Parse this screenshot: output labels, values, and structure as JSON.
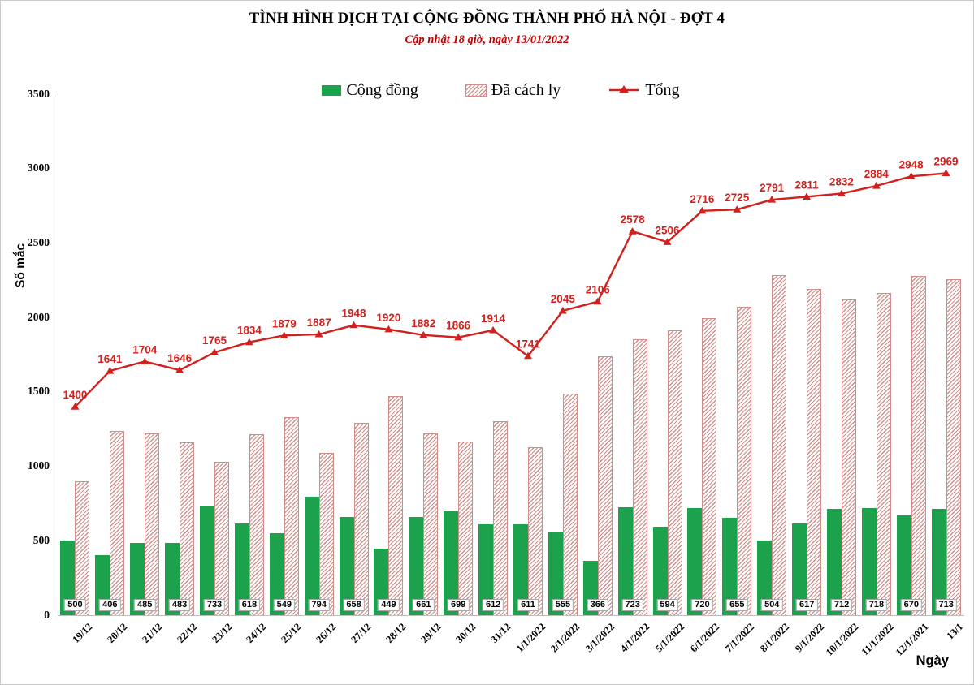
{
  "title": "TÌNH HÌNH DỊCH TẠI CỘNG ĐỒNG THÀNH PHỐ HÀ NỘI - ĐỢT 4",
  "subtitle": "Cập nhật 18 giờ, ngày 13/01/2022",
  "legend": {
    "community": "Cộng đồng",
    "isolated": "Đã cách ly",
    "total": "Tổng"
  },
  "axes": {
    "y_label": "Số mắc",
    "x_label": "Ngày",
    "y_ticks": [
      0,
      500,
      1000,
      1500,
      2000,
      2500,
      3000,
      3500
    ]
  },
  "colors": {
    "community_green": "#1ca24d",
    "isolated_rose": "#cf8e8a",
    "total_red": "#d1201d",
    "subtitle_red": "#c00000"
  },
  "chart_data": {
    "type": "bar+line",
    "title": "TÌNH HÌNH DỊCH TẠI CỘNG ĐỒNG THÀNH PHỐ HÀ NỘI - ĐỢT 4",
    "subtitle": "Cập nhật 18 giờ, ngày 13/01/2022",
    "xlabel": "Ngày",
    "ylabel": "Số mắc",
    "ylim": [
      0,
      3500
    ],
    "grid": false,
    "legend_position": "top",
    "categories": [
      "19/12",
      "20/12",
      "21/12",
      "22/12",
      "23/12",
      "24/12",
      "25/12",
      "26/12",
      "27/12",
      "28/12",
      "29/12",
      "30/12",
      "31/12",
      "1/1/2022",
      "2/1/2022",
      "3/1/2022",
      "4/1/2022",
      "5/1/2022",
      "6/1/2022",
      "7/1/2022",
      "8/1/2022",
      "9/1/2022",
      "10/1/2022",
      "11/1/2022",
      "12/1/2021",
      "13/1"
    ],
    "series": [
      {
        "name": "Cộng đồng",
        "type": "bar",
        "style": "solid",
        "color": "#1ca24d",
        "labels_shown": true,
        "values": [
          500,
          406,
          485,
          483,
          733,
          618,
          549,
          794,
          658,
          449,
          661,
          699,
          612,
          611,
          555,
          366,
          723,
          594,
          720,
          655,
          504,
          617,
          712,
          718,
          670,
          713
        ]
      },
      {
        "name": "Đã cách ly",
        "type": "bar",
        "style": "hatched",
        "color": "#cf8e8a",
        "labels_shown": false,
        "values": [
          900,
          1235,
          1219,
          1163,
          1032,
          1216,
          1330,
          1093,
          1290,
          1471,
          1221,
          1167,
          1302,
          1130,
          1490,
          1740,
          1855,
          1912,
          1996,
          2070,
          2287,
          2194,
          2120,
          2166,
          2278,
          2256
        ]
      },
      {
        "name": "Tổng",
        "type": "line",
        "marker": "triangle",
        "color": "#d1201d",
        "labels_shown": true,
        "values": [
          1400,
          1641,
          1704,
          1646,
          1765,
          1834,
          1879,
          1887,
          1948,
          1920,
          1882,
          1866,
          1914,
          1741,
          2045,
          2106,
          2578,
          2506,
          2716,
          2725,
          2791,
          2811,
          2832,
          2884,
          2948,
          2969
        ]
      }
    ]
  }
}
